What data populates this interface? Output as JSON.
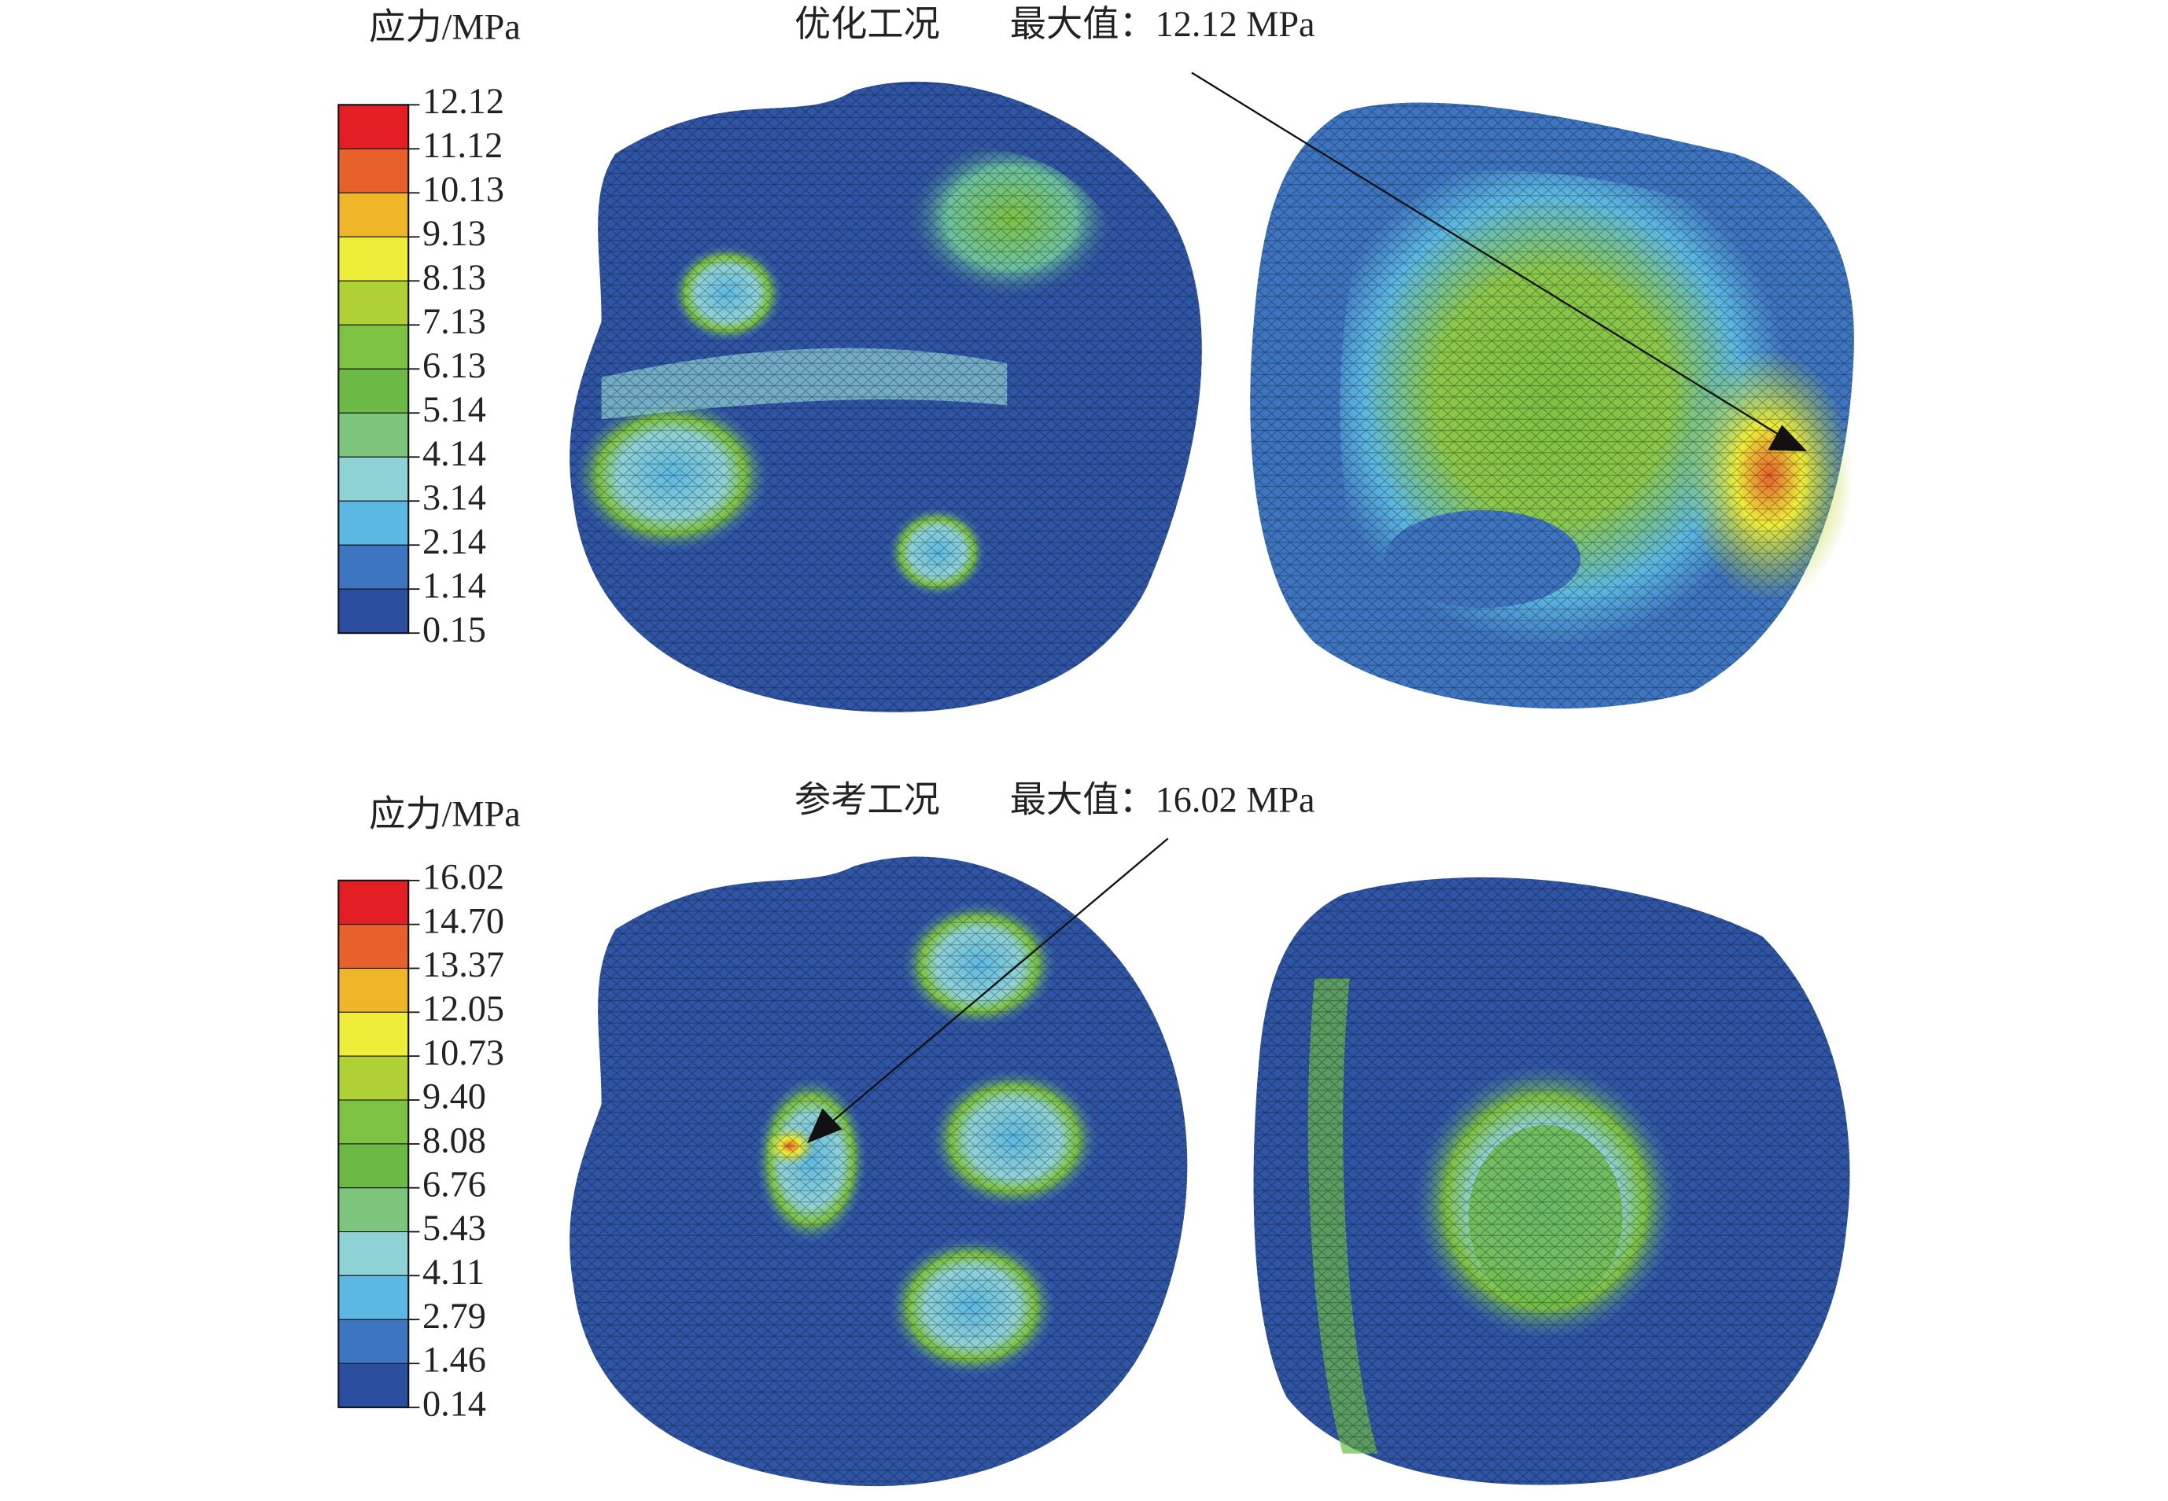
{
  "colors": [
    "#e31e24",
    "#e8602c",
    "#f0b62a",
    "#eded3a",
    "#b0d136",
    "#7dc242",
    "#6cba45",
    "#7dc47c",
    "#8fd2d6",
    "#5bb8e2",
    "#3e75c0",
    "#2b4f9e"
  ],
  "panels": [
    {
      "legend_title": "应力/MPa",
      "condition": "优化工况",
      "max_label": "最大值：12.12 MPa",
      "levels": [
        "12.12",
        "11.12",
        "10.13",
        "9.13",
        "8.13",
        "7.13",
        "6.13",
        "5.14",
        "4.14",
        "3.14",
        "2.14",
        "1.14",
        "0.15"
      ]
    },
    {
      "legend_title": "应力/MPa",
      "condition": "参考工况",
      "max_label": "最大值：16.02 MPa",
      "levels": [
        "16.02",
        "14.70",
        "13.37",
        "12.05",
        "10.73",
        "9.40",
        "8.08",
        "6.76",
        "5.43",
        "4.11",
        "2.79",
        "1.46",
        "0.14"
      ]
    }
  ]
}
